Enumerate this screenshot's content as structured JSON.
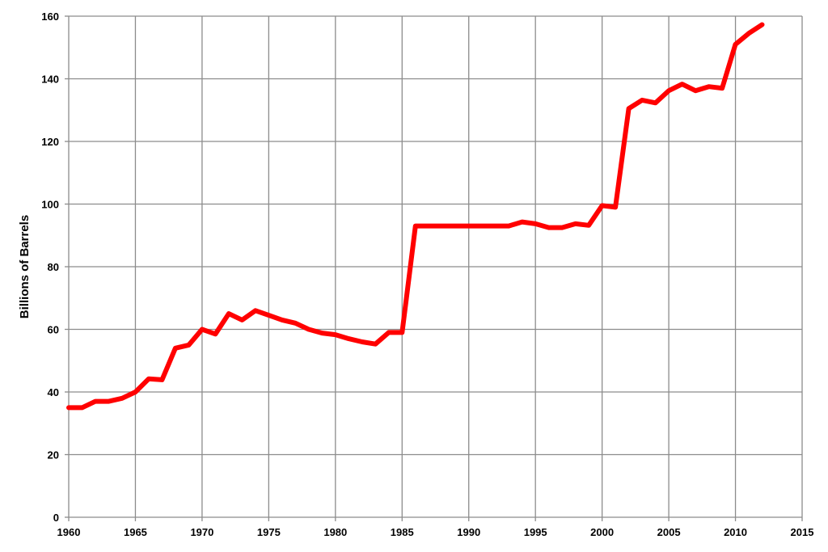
{
  "chart_data": {
    "type": "line",
    "title": "",
    "xlabel": "",
    "ylabel": "Billions of Barrels",
    "xlim": [
      1960,
      2015
    ],
    "ylim": [
      0,
      160
    ],
    "x_ticks": [
      1960,
      1965,
      1970,
      1975,
      1980,
      1985,
      1990,
      1995,
      2000,
      2005,
      2010,
      2015
    ],
    "y_ticks": [
      0,
      20,
      40,
      60,
      80,
      100,
      120,
      140,
      160
    ],
    "grid": true,
    "legend": "none",
    "series": [
      {
        "color": "#ff0000",
        "x": [
          1960,
          1961,
          1962,
          1963,
          1964,
          1965,
          1966,
          1967,
          1968,
          1969,
          1970,
          1971,
          1972,
          1973,
          1974,
          1975,
          1976,
          1977,
          1978,
          1979,
          1980,
          1981,
          1982,
          1983,
          1984,
          1985,
          1986,
          1987,
          1988,
          1989,
          1990,
          1991,
          1992,
          1993,
          1994,
          1995,
          1996,
          1997,
          1998,
          1999,
          2000,
          2001,
          2002,
          2003,
          2004,
          2005,
          2006,
          2007,
          2008,
          2009,
          2010,
          2011,
          2012
        ],
        "y": [
          35,
          35,
          37,
          37,
          38,
          40,
          44.2,
          43.9,
          54,
          55,
          60,
          58.5,
          65,
          63,
          66,
          64.5,
          63,
          62,
          60,
          58.8,
          58.3,
          57,
          56,
          55.3,
          59,
          59,
          93,
          93,
          93,
          93,
          93,
          93,
          93,
          93,
          94.3,
          93.7,
          92.5,
          92.5,
          93.7,
          93.2,
          99.5,
          99,
          130.5,
          133.2,
          132.3,
          136.2,
          138.3,
          136.2,
          137.5,
          137,
          151,
          154.5,
          157.3
        ]
      }
    ]
  }
}
